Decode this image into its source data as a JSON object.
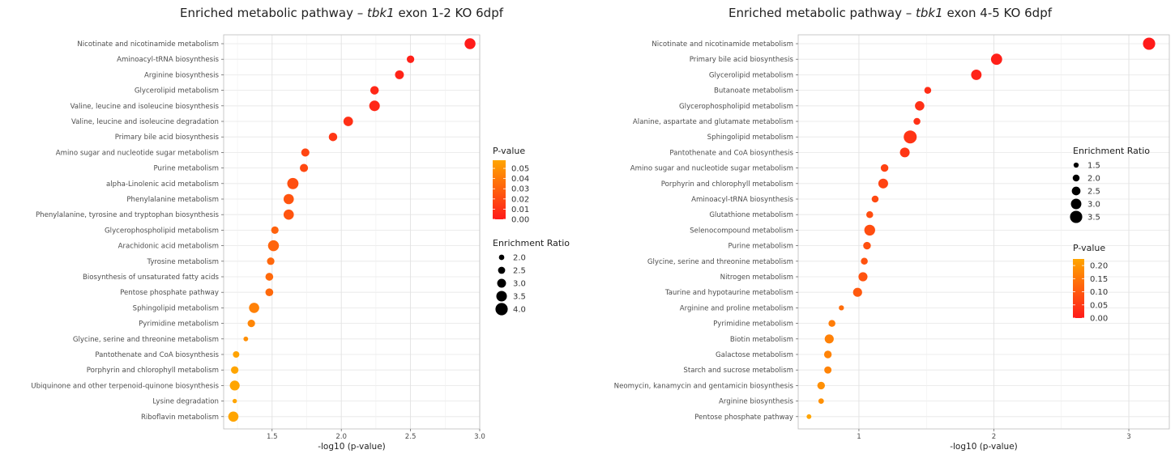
{
  "chart_data": [
    {
      "type": "scatter",
      "title_prefix": "Enriched metabolic pathway – ",
      "title_gene": "tbk1",
      "title_suffix": " exon 1-2 KO 6dpf",
      "xlabel": "-log10 (p-value)",
      "ylabel": "",
      "xlim": [
        1.15,
        3.0
      ],
      "xticks": [
        "1.5",
        "2.0",
        "2.5",
        "3.0"
      ],
      "xtick_values": [
        1.5,
        2.0,
        2.5,
        3.0
      ],
      "grid": true,
      "legend_placement": "right",
      "color_legend": {
        "title": "P-value",
        "labels": [
          "0.05",
          "0.04",
          "0.03",
          "0.02",
          "0.01",
          "0.00"
        ],
        "values": [
          0.05,
          0.04,
          0.03,
          0.02,
          0.01,
          0.0
        ],
        "range": [
          0.0,
          0.058
        ],
        "low_color": "#ff1a1a",
        "high_color": "#ffa500"
      },
      "size_legend": {
        "title": "Enrichment Ratio",
        "labels": [
          "2.0",
          "2.5",
          "3.0",
          "3.5",
          "4.0"
        ],
        "values": [
          2.0,
          2.5,
          3.0,
          3.5,
          4.0
        ],
        "range": [
          1.6,
          4.2
        ]
      },
      "categories": [
        "Nicotinate and nicotinamide metabolism",
        "Aminoacyl-tRNA biosynthesis",
        "Arginine biosynthesis",
        "Glycerolipid metabolism",
        "Valine, leucine and isoleucine biosynthesis",
        "Valine, leucine and isoleucine degradation",
        "Primary bile acid biosynthesis",
        "Amino sugar and nucleotide sugar metabolism",
        "Purine metabolism",
        "alpha-Linolenic acid metabolism",
        "Phenylalanine metabolism",
        "Phenylalanine, tyrosine and tryptophan biosynthesis",
        "Glycerophospholipid metabolism",
        "Arachidonic acid metabolism",
        "Tyrosine metabolism",
        "Biosynthesis of unsaturated fatty acids",
        "Pentose phosphate pathway",
        "Sphingolipid metabolism",
        "Pyrimidine metabolism",
        "Glycine, serine and threonine metabolism",
        "Pantothenate and CoA biosynthesis",
        "Porphyrin and chlorophyll metabolism",
        "Ubiquinone and other terpenoid-quinone biosynthesis",
        "Lysine degradation",
        "Riboflavin metabolism"
      ],
      "x": [
        2.93,
        2.5,
        2.42,
        2.24,
        2.24,
        2.05,
        1.94,
        1.74,
        1.73,
        1.65,
        1.62,
        1.62,
        1.52,
        1.51,
        1.49,
        1.48,
        1.48,
        1.37,
        1.35,
        1.31,
        1.24,
        1.23,
        1.23,
        1.23,
        1.22
      ],
      "enrichment_ratio": [
        3.6,
        2.6,
        3.0,
        2.9,
        3.5,
        3.2,
        2.9,
        2.8,
        2.8,
        3.7,
        3.4,
        3.4,
        2.6,
        3.6,
        2.6,
        2.7,
        2.7,
        3.4,
        2.6,
        1.8,
        2.3,
        2.6,
        3.3,
        1.7,
        3.4
      ],
      "p_value": [
        0.001,
        0.003,
        0.004,
        0.006,
        0.006,
        0.009,
        0.012,
        0.018,
        0.019,
        0.022,
        0.024,
        0.024,
        0.03,
        0.031,
        0.032,
        0.033,
        0.033,
        0.043,
        0.045,
        0.049,
        0.057,
        0.058,
        0.058,
        0.058,
        0.06
      ]
    },
    {
      "type": "scatter",
      "title_prefix": "Enriched metabolic pathway – ",
      "title_gene": "tbk1",
      "title_suffix": " exon 4-5 KO 6dpf",
      "xlabel": "-log10 (p-value)",
      "ylabel": "",
      "xlim": [
        0.55,
        3.3
      ],
      "xticks": [
        "1",
        "2",
        "3"
      ],
      "xtick_values": [
        1,
        2,
        3
      ],
      "grid": true,
      "legend_placement": "right",
      "color_legend": {
        "title": "P-value",
        "labels": [
          "0.20",
          "0.15",
          "0.10",
          "0.05",
          "0.00"
        ],
        "values": [
          0.2,
          0.15,
          0.1,
          0.05,
          0.0
        ],
        "range": [
          0.0,
          0.225
        ],
        "low_color": "#ff1a1a",
        "high_color": "#ffa500"
      },
      "size_legend": {
        "title": "Enrichment Ratio",
        "labels": [
          "1.5",
          "2.0",
          "2.5",
          "3.0",
          "3.5"
        ],
        "values": [
          1.5,
          2.0,
          2.5,
          3.0,
          3.5
        ],
        "range": [
          1.2,
          3.7
        ]
      },
      "categories": [
        "Nicotinate and nicotinamide metabolism",
        "Primary bile acid biosynthesis",
        "Glycerolipid metabolism",
        "Butanoate metabolism",
        "Glycerophospholipid metabolism",
        "Alanine, aspartate and glutamate metabolism",
        "Sphingolipid metabolism",
        "Pantothenate and CoA biosynthesis",
        "Amino sugar and nucleotide sugar metabolism",
        "Porphyrin and chlorophyll metabolism",
        "Aminoacyl-tRNA biosynthesis",
        "Glutathione metabolism",
        "Selenocompound metabolism",
        "Purine metabolism",
        "Glycine, serine and threonine metabolism",
        "Nitrogen metabolism",
        "Taurine and hypotaurine metabolism",
        "Arginine and proline metabolism",
        "Pyrimidine metabolism",
        "Biotin metabolism",
        "Galactose metabolism",
        "Starch and sucrose metabolism",
        "Neomycin, kanamycin and gentamicin biosynthesis",
        "Arginine biosynthesis",
        "Pentose phosphate pathway"
      ],
      "x": [
        3.15,
        2.02,
        1.87,
        1.51,
        1.45,
        1.43,
        1.38,
        1.34,
        1.19,
        1.18,
        1.12,
        1.08,
        1.08,
        1.06,
        1.04,
        1.03,
        0.99,
        0.87,
        0.8,
        0.78,
        0.77,
        0.77,
        0.72,
        0.72,
        0.63
      ],
      "enrichment_ratio": [
        3.5,
        3.2,
        3.0,
        2.0,
        2.7,
        2.0,
        3.7,
        2.8,
        2.2,
        2.8,
        2.0,
        2.0,
        3.1,
        2.2,
        2.0,
        2.6,
        2.6,
        1.5,
        2.0,
        2.6,
        2.2,
        2.1,
        2.2,
        1.6,
        1.4
      ],
      "p_value": [
        0.001,
        0.01,
        0.014,
        0.031,
        0.035,
        0.037,
        0.042,
        0.046,
        0.065,
        0.066,
        0.076,
        0.083,
        0.083,
        0.087,
        0.091,
        0.093,
        0.102,
        0.135,
        0.158,
        0.166,
        0.17,
        0.17,
        0.191,
        0.191,
        0.234
      ]
    }
  ]
}
